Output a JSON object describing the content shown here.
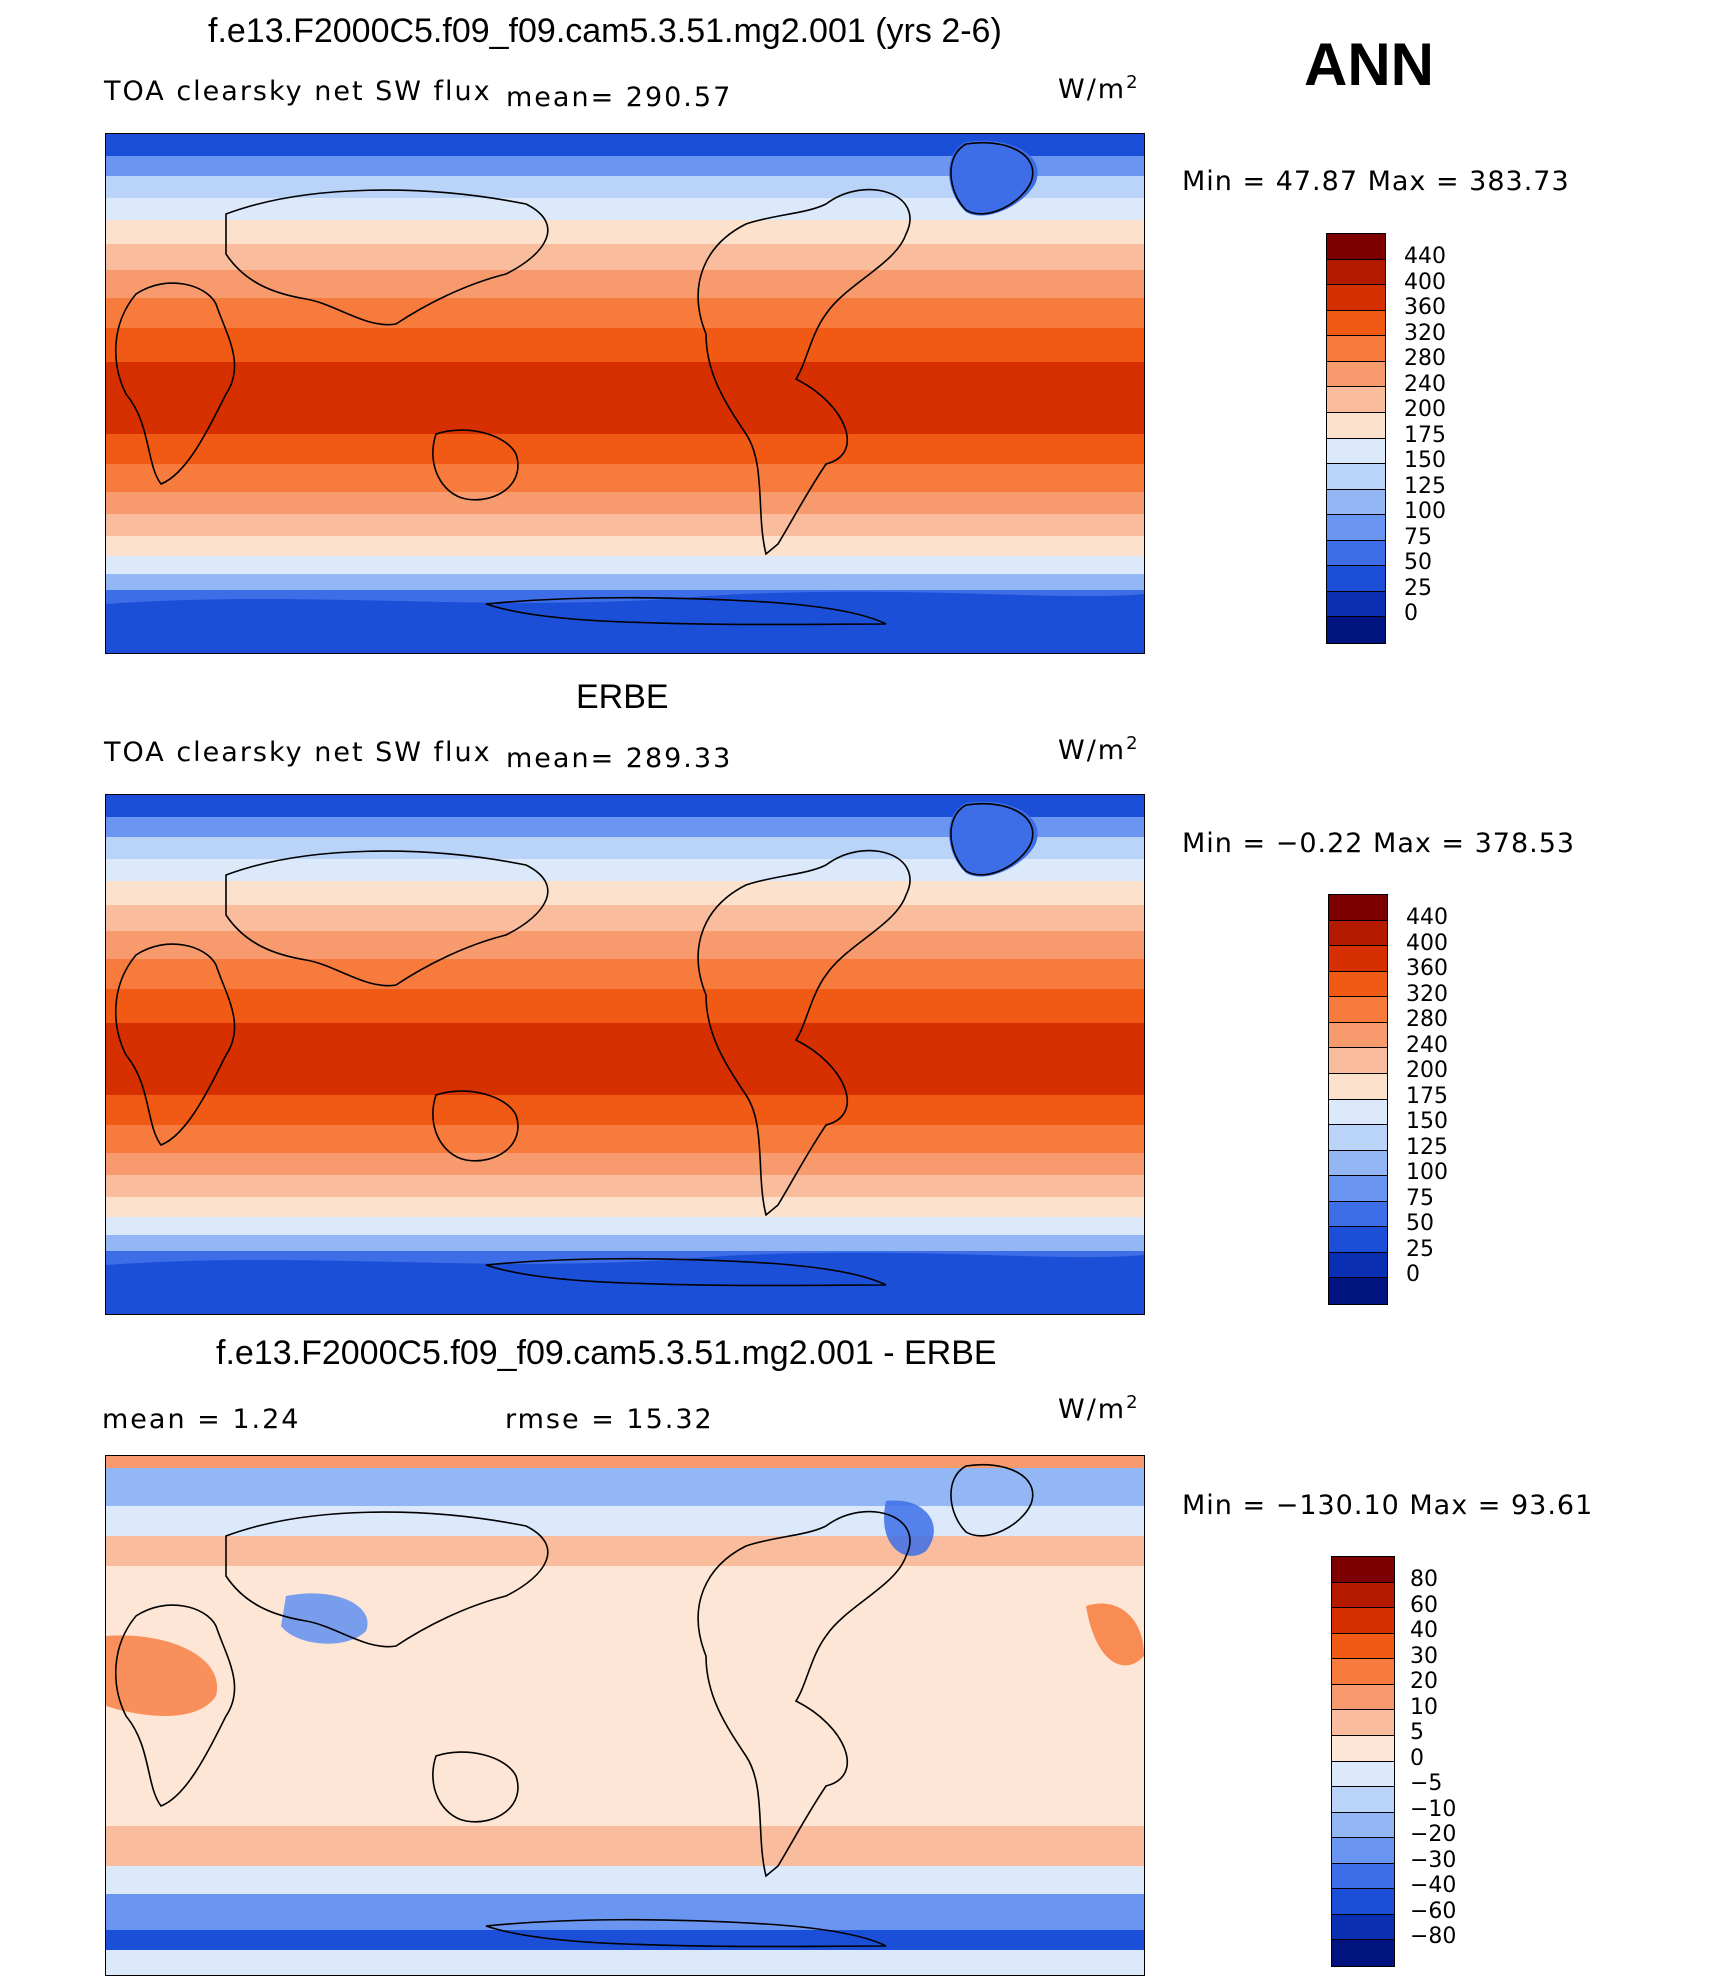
{
  "season": "ANN",
  "panels": [
    {
      "title": "f.e13.F2000C5.f09_f09.cam5.3.51.mg2.001 (yrs 2-6)",
      "variable": "TOA clearsky net SW flux",
      "stat_left": "",
      "stat_right": "mean=  290.57",
      "units_main": "W/m",
      "units_exp": "2",
      "minmax": "Min =   47.87  Max =  383.73",
      "palette": "abs",
      "levels": [
        "440",
        "400",
        "360",
        "320",
        "280",
        "240",
        "200",
        "175",
        "150",
        "125",
        "100",
        "75",
        "50",
        "25",
        "0"
      ]
    },
    {
      "title": "ERBE",
      "variable": "TOA clearsky net SW flux",
      "stat_left": "",
      "stat_right": "mean=  289.33",
      "units_main": "W/m",
      "units_exp": "2",
      "minmax": "Min =   −0.22  Max =  378.53",
      "palette": "abs",
      "levels": [
        "440",
        "400",
        "360",
        "320",
        "280",
        "240",
        "200",
        "175",
        "150",
        "125",
        "100",
        "75",
        "50",
        "25",
        "0"
      ]
    },
    {
      "title": "f.e13.F2000C5.f09_f09.cam5.3.51.mg2.001 - ERBE",
      "variable": "mean =     1.24",
      "stat_left": "",
      "stat_right": "rmse =    15.32",
      "units_main": "W/m",
      "units_exp": "2",
      "minmax": "Min = −130.10  Max =   93.61",
      "palette": "diff",
      "levels": [
        "80",
        "60",
        "40",
        "30",
        "20",
        "10",
        "5",
        "0",
        "−5",
        "−10",
        "−20",
        "−30",
        "−40",
        "−60",
        "−80"
      ]
    }
  ],
  "colors": {
    "abs": [
      "#7d0000",
      "#b31a00",
      "#d62f00",
      "#f05a14",
      "#f77b3c",
      "#f79b6e",
      "#f9bd9d",
      "#fce1cc",
      "#dce9fa",
      "#b9d3f9",
      "#93b6f5",
      "#6a95f0",
      "#3d6ee8",
      "#1c4fd8",
      "#0a2fb2",
      "#00137e"
    ],
    "diff": [
      "#7d0000",
      "#b31a00",
      "#d62f00",
      "#f05a14",
      "#f77b3c",
      "#f79b6e",
      "#f9bd9d",
      "#fde6d5",
      "#dce9fa",
      "#b9d3f9",
      "#93b6f5",
      "#6a95f0",
      "#3d6ee8",
      "#1c4fd8",
      "#0a2fb2",
      "#00137e"
    ]
  }
}
